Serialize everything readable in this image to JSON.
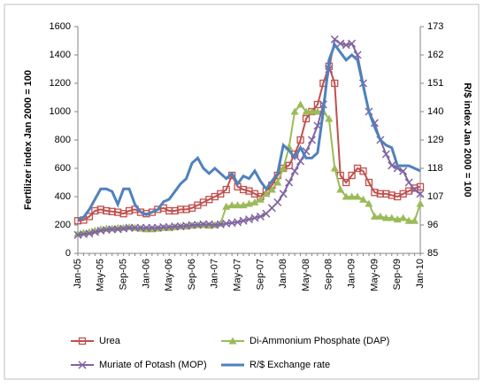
{
  "chart_data": {
    "type": "line",
    "y_label": "Fertilizer index Jan 2000 = 100",
    "y2_label": "R/$ index Jan 2000 = 100",
    "categories": [
      "Jan-05",
      null,
      null,
      null,
      "May-05",
      null,
      null,
      null,
      "Sep-05",
      null,
      null,
      null,
      "Jan-06",
      null,
      null,
      null,
      "May-06",
      null,
      null,
      null,
      "Sep-06",
      null,
      null,
      null,
      "Jan-07",
      null,
      null,
      null,
      "May-07",
      null,
      null,
      null,
      "Sep-07",
      null,
      null,
      null,
      "Jan-08",
      null,
      null,
      null,
      "May-08",
      null,
      null,
      null,
      "Sep-08",
      null,
      null,
      null,
      "Jan-09",
      null,
      null,
      null,
      "May-09",
      null,
      null,
      null,
      "Sep-09",
      null,
      null,
      null,
      "Jan-10"
    ],
    "ylim": [
      0,
      1600
    ],
    "yticks": [
      0,
      200,
      400,
      600,
      800,
      1000,
      1200,
      1400,
      1600
    ],
    "y2lim": [
      85,
      173
    ],
    "y2ticks": [
      85,
      96,
      107,
      118,
      129,
      140,
      151,
      162,
      173
    ],
    "grid": false,
    "series": [
      {
        "name": "Urea",
        "color": "#c0504d",
        "marker": "square",
        "values": [
          230,
          235,
          260,
          300,
          310,
          300,
          295,
          290,
          280,
          300,
          310,
          290,
          280,
          290,
          310,
          320,
          300,
          300,
          310,
          310,
          320,
          340,
          360,
          380,
          400,
          420,
          450,
          550,
          470,
          450,
          440,
          420,
          400,
          440,
          480,
          550,
          600,
          620,
          700,
          800,
          950,
          1000,
          1050,
          1200,
          1320,
          1200,
          550,
          500,
          550,
          600,
          580,
          500,
          430,
          420,
          420,
          410,
          400,
          420,
          440,
          460,
          470
        ]
      },
      {
        "name": "Di-Ammonium Phosphate (DAP)",
        "color": "#9bbb59",
        "marker": "triangle",
        "values": [
          140,
          145,
          150,
          160,
          170,
          175,
          175,
          180,
          180,
          185,
          180,
          175,
          170,
          170,
          175,
          180,
          180,
          185,
          190,
          190,
          195,
          200,
          200,
          195,
          200,
          210,
          330,
          340,
          340,
          340,
          350,
          360,
          380,
          420,
          450,
          500,
          600,
          750,
          1000,
          1050,
          1000,
          1000,
          1000,
          1000,
          950,
          600,
          450,
          400,
          400,
          400,
          380,
          350,
          260,
          260,
          250,
          250,
          240,
          250,
          230,
          230,
          350
        ]
      },
      {
        "name": "Muriate of Potash (MOP)",
        "color": "#8064a2",
        "marker": "x",
        "values": [
          130,
          135,
          140,
          150,
          160,
          165,
          170,
          170,
          175,
          180,
          180,
          180,
          180,
          180,
          180,
          185,
          185,
          190,
          190,
          195,
          200,
          200,
          205,
          205,
          200,
          205,
          210,
          215,
          220,
          230,
          240,
          250,
          260,
          280,
          320,
          360,
          420,
          500,
          580,
          650,
          720,
          800,
          900,
          1050,
          1300,
          1510,
          1480,
          1470,
          1480,
          1400,
          1200,
          1000,
          920,
          800,
          700,
          620,
          600,
          580,
          500,
          450,
          420
        ]
      },
      {
        "name": "R/$ Exchange rate",
        "color": "#4f81bd",
        "marker": "none",
        "axis": "y2",
        "values": [
          98,
          99,
          102,
          106,
          110,
          110,
          109,
          104,
          110,
          110,
          104,
          101,
          100,
          101,
          102,
          105,
          106,
          109,
          112,
          114,
          120,
          122,
          118,
          116,
          118,
          116,
          114,
          116,
          112,
          115,
          114,
          117,
          113,
          110,
          113,
          116,
          127,
          125,
          122,
          126,
          122,
          122,
          124,
          140,
          160,
          166,
          163,
          160,
          162,
          160,
          150,
          140,
          134,
          129,
          127,
          126,
          119,
          119,
          119,
          118,
          117
        ]
      }
    ]
  }
}
